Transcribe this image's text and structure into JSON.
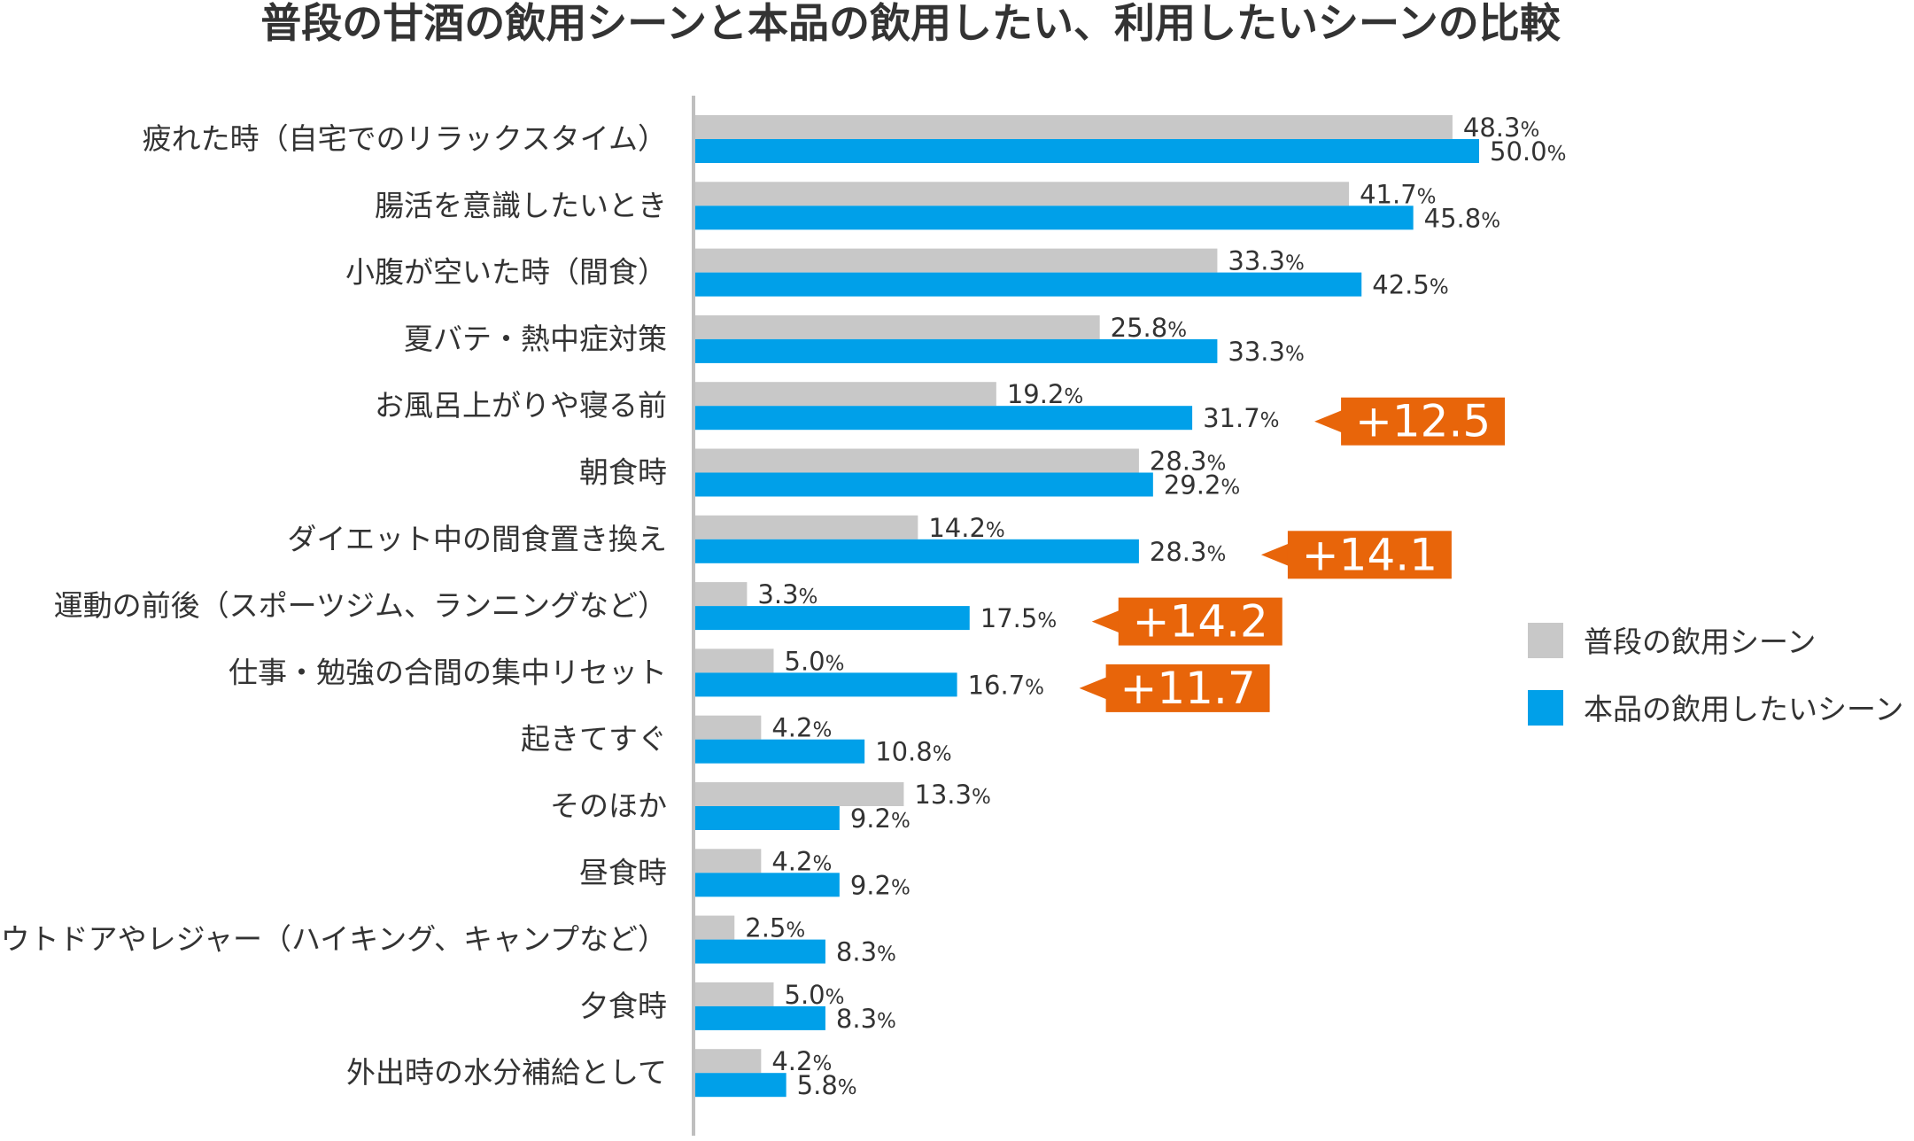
{
  "chart_data": {
    "type": "bar",
    "orientation": "horizontal",
    "title": "普段の甘酒の飲用シーンと本品の飲用したい、利用したいシーンの比較",
    "unit": "%",
    "categories": [
      "疲れた時（自宅でのリラックスタイム）",
      "腸活を意識したいとき",
      "小腹が空いた時（間食）",
      "夏バテ・熱中症対策",
      "お風呂上がりや寝る前",
      "朝食時",
      "ダイエット中の間食置き換え",
      "運動の前後（スポーツジム、ランニングなど）",
      "仕事・勉強の合間の集中リセット",
      "起きてすぐ",
      "そのほか",
      "昼食時",
      "アウトドアやレジャー（ハイキング、キャンプなど）",
      "夕食時",
      "外出時の水分補給として"
    ],
    "series": [
      {
        "name": "普段の飲用シーン",
        "color": "#c8c8c8",
        "values": [
          48.3,
          41.7,
          33.3,
          25.8,
          19.2,
          28.3,
          14.2,
          3.3,
          5.0,
          4.2,
          13.3,
          4.2,
          2.5,
          5.0,
          4.2
        ],
        "labels": [
          "48.3",
          "41.7",
          "33.3",
          "25.8",
          "19.2",
          "28.3",
          "14.2",
          "3.3",
          "5.0",
          "4.2",
          "13.3",
          "4.2",
          "2.5",
          "5.0",
          "4.2"
        ]
      },
      {
        "name": "本品の飲用したいシーン",
        "color": "#00a0e9",
        "values": [
          50.0,
          45.8,
          42.5,
          33.3,
          31.7,
          29.2,
          28.3,
          17.5,
          16.7,
          10.8,
          9.2,
          9.2,
          8.3,
          8.3,
          5.8
        ],
        "labels": [
          "50.0",
          "45.8",
          "42.5",
          "33.3",
          "31.7",
          "29.2",
          "28.3",
          "17.5",
          "16.7",
          "10.8",
          "9.2",
          "9.2",
          "8.3",
          "8.3",
          "5.8"
        ]
      }
    ],
    "callouts": [
      {
        "category_index": 4,
        "text": "+12.5"
      },
      {
        "category_index": 6,
        "text": "+14.1"
      },
      {
        "category_index": 7,
        "text": "+14.2"
      },
      {
        "category_index": 8,
        "text": "+11.7"
      }
    ],
    "callout_color": "#e8650a",
    "xlim": [
      0,
      50
    ],
    "legend_position": "right"
  }
}
